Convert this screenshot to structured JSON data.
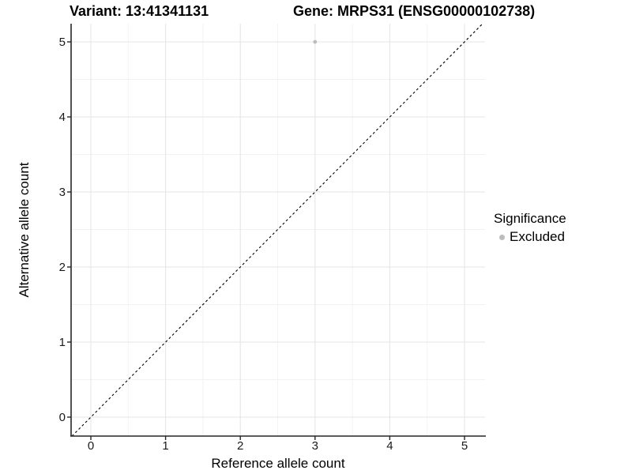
{
  "titles": {
    "variant": "Variant: 13:41341131",
    "gene": "Gene: MRPS31 (ENSG00000102738)"
  },
  "legend": {
    "title": "Significance",
    "items": [
      {
        "label": "Excluded",
        "color": "#BDBDBD"
      }
    ]
  },
  "chart_data": {
    "type": "scatter",
    "title_left": "Variant: 13:41341131",
    "title_right": "Gene: MRPS31 (ENSG00000102738)",
    "xlabel": "Reference allele count",
    "ylabel": "Alternative allele count",
    "xlim": [
      -0.2643,
      5.2748
    ],
    "ylim": [
      -0.2526,
      5.2421
    ],
    "xticks": [
      0,
      1,
      2,
      3,
      4,
      5
    ],
    "yticks": [
      0,
      1,
      2,
      3,
      4,
      5
    ],
    "minor_gridlines_x": [
      0.5,
      1.5,
      2.5,
      3.5,
      4.5
    ],
    "minor_gridlines_y": [
      0.5,
      1.5,
      2.5,
      3.5,
      4.5
    ],
    "grid": true,
    "legend_position": "right",
    "series": [
      {
        "name": "Excluded",
        "color": "#BDBDBD",
        "points": [
          {
            "x": 3,
            "y": 5
          }
        ]
      }
    ],
    "reference_line": {
      "type": "abline",
      "intercept": 0,
      "slope": 1,
      "style": "dashed",
      "color": "#000000"
    },
    "colors": {
      "point": "#BDBDBD",
      "grid_major": "#E6E6E6",
      "grid_minor": "#F2F2F2",
      "axis_line": "#262626",
      "tick_text": "#1a1a1a"
    }
  }
}
